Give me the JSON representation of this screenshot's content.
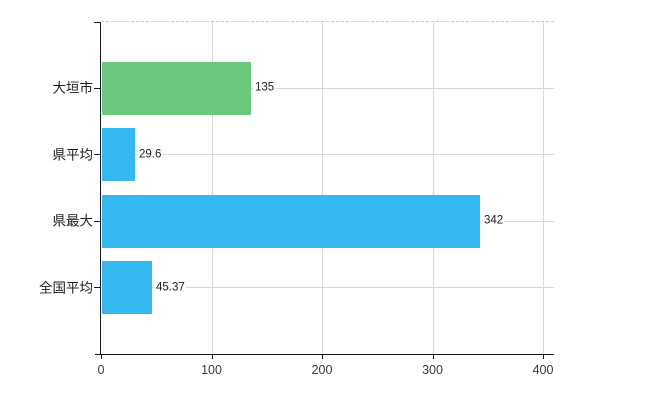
{
  "chart_data": {
    "type": "bar",
    "orientation": "horizontal",
    "title": "",
    "xlabel": "",
    "ylabel": "",
    "categories": [
      "大垣市",
      "県平均",
      "県最大",
      "全国平均"
    ],
    "values": [
      135,
      29.6,
      342,
      45.37
    ],
    "value_labels": [
      "135",
      "29.6",
      "342",
      "45.37"
    ],
    "bar_colors": [
      "#6cc87c",
      "#35b9f0",
      "#35b9f0",
      "#35b9f0"
    ],
    "x_ticks": [
      0,
      100,
      200,
      300,
      400
    ],
    "x_tick_labels": [
      "0",
      "100",
      "200",
      "300",
      "400"
    ],
    "xlim": [
      0,
      410
    ],
    "grid": true,
    "legend": false,
    "plot_border_top_style": "dashed",
    "axis_color": "#1a1a1a",
    "grid_color": "#d9d9d9",
    "label_color": "#1c1c1c"
  }
}
